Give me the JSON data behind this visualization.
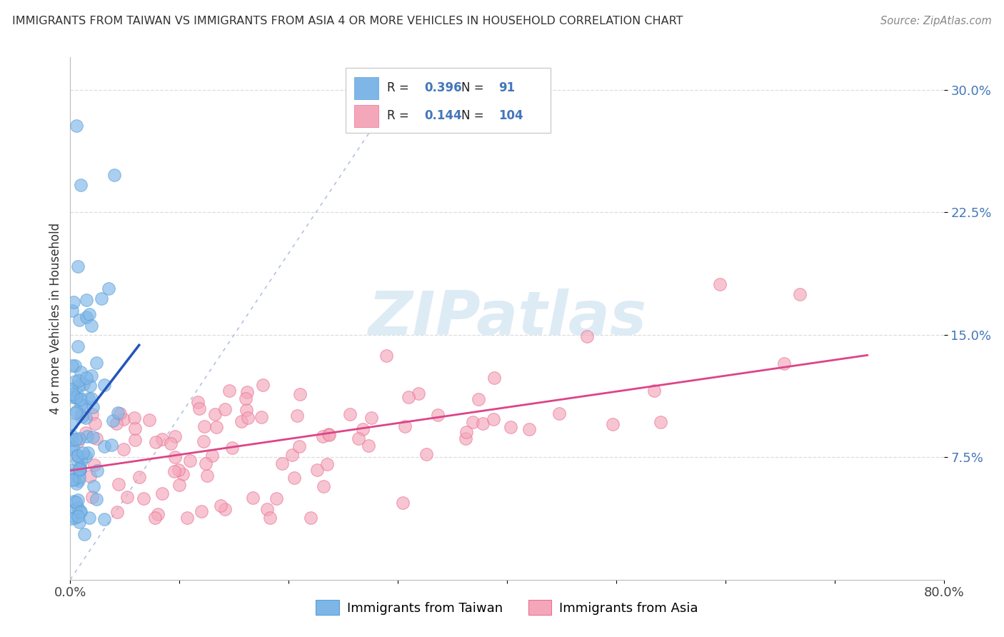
{
  "title": "IMMIGRANTS FROM TAIWAN VS IMMIGRANTS FROM ASIA 4 OR MORE VEHICLES IN HOUSEHOLD CORRELATION CHART",
  "source": "Source: ZipAtlas.com",
  "ylabel": "4 or more Vehicles in Household",
  "xlim": [
    0.0,
    0.8
  ],
  "ylim": [
    0.0,
    0.32
  ],
  "xticks": [
    0.0,
    0.1,
    0.2,
    0.3,
    0.4,
    0.5,
    0.6,
    0.7,
    0.8
  ],
  "xticklabels": [
    "0.0%",
    "",
    "",
    "",
    "",
    "",
    "",
    "",
    "80.0%"
  ],
  "yticks": [
    0.075,
    0.15,
    0.225,
    0.3
  ],
  "yticklabels": [
    "7.5%",
    "15.0%",
    "22.5%",
    "30.0%"
  ],
  "taiwan_color": "#7EB6E8",
  "taiwan_edge_color": "#5B9FD4",
  "asia_color": "#F4A7B9",
  "asia_edge_color": "#E87096",
  "taiwan_R": 0.396,
  "taiwan_N": 91,
  "asia_R": 0.144,
  "asia_N": 104,
  "taiwan_line_color": "#2255BB",
  "asia_line_color": "#DD4488",
  "diag_line_color": "#AABBDD",
  "grid_color": "#DDDDDD",
  "tick_color": "#4477BB",
  "watermark_color": "#DDEBF5",
  "watermark_text": "ZIPatlas"
}
